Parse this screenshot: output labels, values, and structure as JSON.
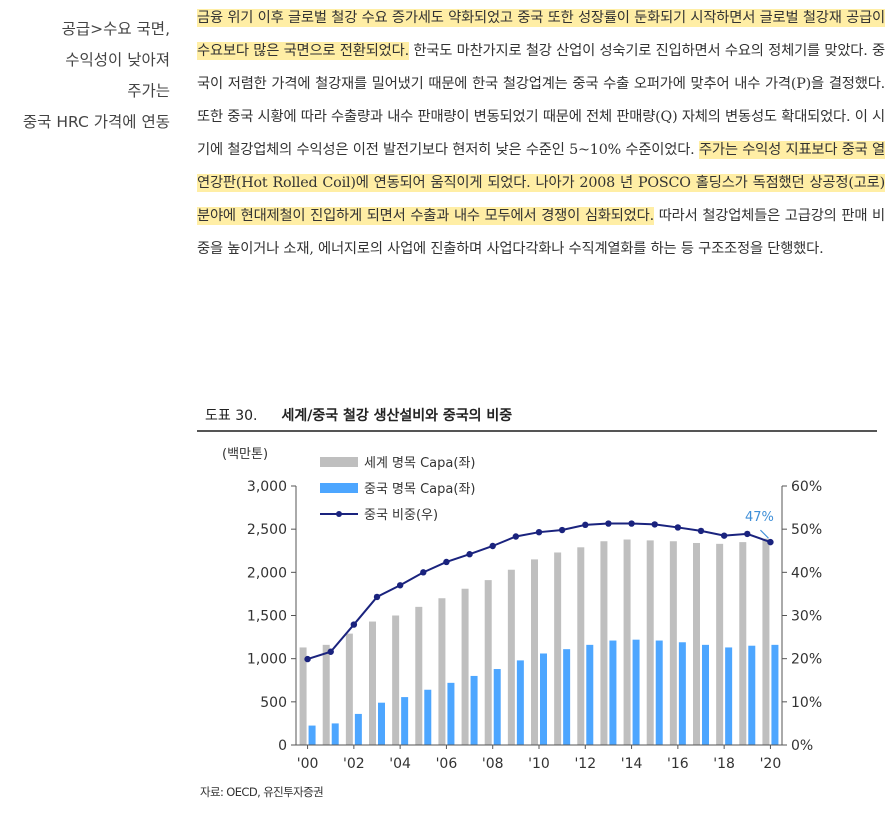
{
  "sidebar": {
    "lines": [
      "공급>수요 국면,",
      "수익성이 낮아져",
      "주가는",
      "중국 HRC 가격에 연동"
    ]
  },
  "body": {
    "p1_seg1": "금융 위기 이후 글로벌 철강 수요 증가세도 약화되었고 중국 또한 성장률이 둔화되기 시작하면서 글로벌 철강재 공급이 수요보다 많은 국면으로 전환되었다.",
    "p1_seg2": " 한국도 마찬가지로 철강 산업이 성숙기로 진입하면서 수요의 정체기를 맞았다. 중국이 저렴한 가격에 철강재를 밀어냈기 때문에 한국 철강업계는 중국 수출 오퍼가에 맞추어 내수 가격(P)을 결정했다. 또한 중국 시황에 따라 수출량과 내수 판매량이 변동되었기 때문에 전체 판매량(Q) 자체의 변동성도 확대되었다. 이 시기에 철강업체의 수익성은 이전 발전기보다 현저히 낮은 수준인 5~10% 수준이었다. ",
    "p1_seg3": "주가는 수익성 지표보다 중국 열연강판(Hot Rolled Coil)에 연동되어 움직이게 되었다. 나아가 2008 년 POSCO 홀딩스가 독점했던 상공정(고로) 분야에 현대제철이 진입하게 되면서 수출과 내수 모두에서 경쟁이 심화되었다.",
    "p1_seg4": " 따라서 철강업체들은 고급강의 판매 비중을 높이거나 소재, 에너지로의 사업에 진출하며 사업다각화나 수직계열화를 하는 등 구조조정을 단행했다."
  },
  "figure": {
    "number": "도표 30.",
    "title": "세계/중국 철강 생산설비와 중국의 비중",
    "source": "자료: OECD, 유진투자증권"
  },
  "chart_data": {
    "type": "bar",
    "title": "세계/중국 철강 생산설비와 중국의 비중",
    "ylabel_left": "(백만톤)",
    "ylim_left": [
      0,
      3000
    ],
    "ylim_right": [
      0,
      60
    ],
    "yticks_left": [
      "0",
      "500",
      "1,000",
      "1,500",
      "2,000",
      "2,500",
      "3,000"
    ],
    "yticks_right": [
      "0%",
      "10%",
      "20%",
      "30%",
      "40%",
      "50%",
      "60%"
    ],
    "x": [
      2000,
      2001,
      2002,
      2003,
      2004,
      2005,
      2006,
      2007,
      2008,
      2009,
      2010,
      2011,
      2012,
      2013,
      2014,
      2015,
      2016,
      2017,
      2018,
      2019,
      2020
    ],
    "xtick_labels": [
      "'00",
      "'02",
      "'04",
      "'06",
      "'08",
      "'10",
      "'12",
      "'14",
      "'16",
      "'18",
      "'20"
    ],
    "series": [
      {
        "name": "세계 명목 Capa(좌)",
        "kind": "bar",
        "axis": "left",
        "color": "#bfbfbf",
        "values": [
          1130,
          1160,
          1290,
          1430,
          1500,
          1600,
          1700,
          1810,
          1910,
          2030,
          2150,
          2230,
          2290,
          2360,
          2380,
          2370,
          2360,
          2340,
          2330,
          2350,
          2390
        ]
      },
      {
        "name": "중국 명목 Capa(좌)",
        "kind": "bar",
        "axis": "left",
        "color": "#4da6ff",
        "values": [
          225,
          250,
          360,
          490,
          555,
          640,
          720,
          800,
          880,
          980,
          1060,
          1110,
          1160,
          1210,
          1220,
          1210,
          1190,
          1160,
          1130,
          1150,
          1160
        ]
      },
      {
        "name": "중국 비중(우)",
        "kind": "line",
        "axis": "right",
        "color": "#1a237e",
        "values": [
          19.9,
          21.6,
          27.9,
          34.3,
          37.0,
          40.0,
          42.4,
          44.2,
          46.1,
          48.3,
          49.3,
          49.8,
          51.0,
          51.3,
          51.3,
          51.1,
          50.4,
          49.6,
          48.5,
          48.9,
          47.0
        ]
      }
    ],
    "annotation": {
      "text": "47%",
      "x": 2020,
      "color": "#3f8fd8"
    },
    "legend_position": "top-left"
  }
}
